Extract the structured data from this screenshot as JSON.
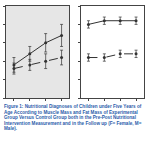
{
  "chart_data": [
    {
      "type": "line",
      "x": [
        1,
        2,
        3,
        4
      ],
      "xlim": [
        0.5,
        4.5
      ],
      "xticks": [
        1,
        2,
        3,
        4
      ],
      "ylim": [
        0,
        25
      ],
      "yticks": [
        0,
        5,
        10,
        15,
        20,
        25
      ],
      "tick_labels": false,
      "grid": false,
      "series": [
        {
          "color": "#333333",
          "line_style": "solid",
          "marker": "circle",
          "values": [
            9,
            12,
            15,
            17
          ],
          "error": [
            2,
            2,
            2.5,
            3
          ]
        },
        {
          "color": "#333333",
          "line_style": "dashed",
          "marker": "circle",
          "values": [
            8,
            9,
            10,
            11
          ],
          "error": [
            1.5,
            1.5,
            2,
            2
          ]
        }
      ]
    },
    {
      "type": "line",
      "x": [
        1,
        2,
        3,
        4
      ],
      "xlim": [
        0.5,
        4.5
      ],
      "xticks": [
        1,
        2,
        3,
        4
      ],
      "ylim": [
        0,
        25
      ],
      "yticks": [
        0,
        5,
        10,
        15,
        20,
        25
      ],
      "tick_labels": false,
      "grid": false,
      "series": [
        {
          "color": "#333333",
          "line_style": "solid",
          "marker": "circle",
          "values": [
            20,
            21,
            21,
            21
          ],
          "error": [
            1,
            1,
            1,
            1
          ]
        },
        {
          "color": "#333333",
          "line_style": "dashed",
          "marker": "circle",
          "values": [
            11,
            11,
            12,
            12
          ],
          "error": [
            1,
            1,
            1,
            1
          ]
        }
      ]
    }
  ],
  "caption": "Figure 1: Nutritional Diagnoses of Children under Five Years of Age According to Muscle Mass and Fat Mass of Experimental Group Versus Control Group both in the Pre-Post Nutritional Intervention Measurement and in the Follow up (F= Female, M= Male)."
}
